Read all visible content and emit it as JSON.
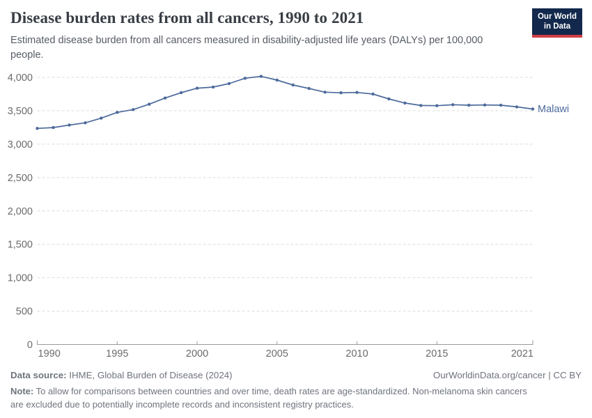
{
  "header": {
    "title": "Disease burden rates from all cancers, 1990 to 2021",
    "subtitle": "Estimated disease burden from all cancers measured in disability-adjusted life years (DALYs) per 100,000 people.",
    "logo": {
      "line1": "Our World",
      "line2": "in Data",
      "bg_color": "#12284C",
      "accent_color": "#D03D44"
    }
  },
  "chart_data": {
    "type": "line",
    "title": "Disease burden rates from all cancers, 1990 to 2021",
    "xlabel": "",
    "ylabel": "DALYs per 100,000 people",
    "xlim": [
      1990,
      2021
    ],
    "ylim": [
      0,
      4000
    ],
    "x_ticks": [
      1990,
      1995,
      2000,
      2005,
      2010,
      2015,
      2021
    ],
    "y_ticks": [
      0,
      500,
      1000,
      1500,
      2000,
      2500,
      3000,
      3500,
      4000
    ],
    "grid": "horizontal-dashed",
    "legend_position": "end-of-line-label",
    "colors": {
      "line": "#4C6A9C",
      "grid": "#dcdcdc",
      "axis": "#9a9a9a",
      "tick_text": "#6b6b6b"
    },
    "series": [
      {
        "name": "Malawi",
        "color": "#4C6A9C",
        "x": [
          1990,
          1991,
          1992,
          1993,
          1994,
          1995,
          1996,
          1997,
          1998,
          1999,
          2000,
          2001,
          2002,
          2003,
          2004,
          2005,
          2006,
          2007,
          2008,
          2009,
          2010,
          2011,
          2012,
          2013,
          2014,
          2015,
          2016,
          2017,
          2018,
          2019,
          2020,
          2021
        ],
        "values": [
          3235,
          3248,
          3286,
          3319,
          3389,
          3475,
          3517,
          3597,
          3690,
          3771,
          3837,
          3854,
          3906,
          3986,
          4015,
          3958,
          3885,
          3833,
          3778,
          3768,
          3774,
          3750,
          3677,
          3615,
          3579,
          3576,
          3590,
          3583,
          3586,
          3583,
          3558,
          3525
        ]
      }
    ]
  },
  "footer": {
    "datasource_label": "Data source:",
    "datasource_value": " IHME, Global Burden of Disease (2024)",
    "link": "OurWorldinData.org/cancer | CC BY",
    "note_label": "Note:",
    "note_value": " To allow for comparisons between countries and over time, death rates are age-standardized. Non-melanoma skin cancers are excluded due to potentially incomplete records and inconsistent registry practices."
  }
}
